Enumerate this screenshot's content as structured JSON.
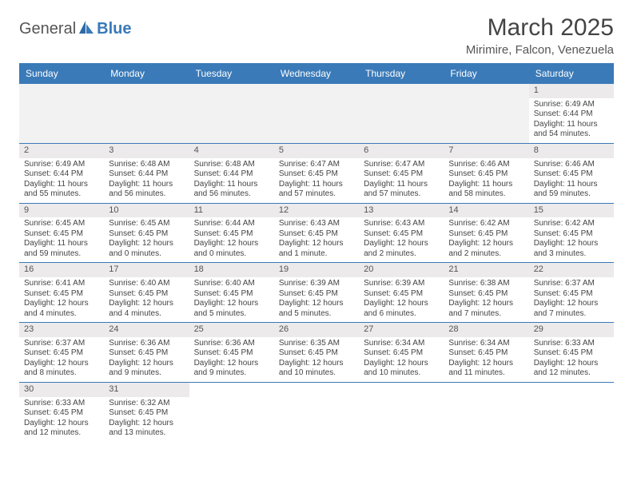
{
  "brand": {
    "name_a": "General",
    "name_b": "Blue"
  },
  "title": "March 2025",
  "location": "Mirimire, Falcon, Venezuela",
  "colors": {
    "header_bg": "#3a7ab8",
    "band_bg": "#eceaea",
    "empty_bg": "#f2f2f2",
    "rule": "#3a7ab8",
    "text": "#444444"
  },
  "day_headers": [
    "Sunday",
    "Monday",
    "Tuesday",
    "Wednesday",
    "Thursday",
    "Friday",
    "Saturday"
  ],
  "weeks": [
    [
      {
        "empty": true
      },
      {
        "empty": true
      },
      {
        "empty": true
      },
      {
        "empty": true
      },
      {
        "empty": true
      },
      {
        "empty": true
      },
      {
        "n": "1",
        "sr": "Sunrise: 6:49 AM",
        "ss": "Sunset: 6:44 PM",
        "d1": "Daylight: 11 hours",
        "d2": "and 54 minutes."
      }
    ],
    [
      {
        "n": "2",
        "sr": "Sunrise: 6:49 AM",
        "ss": "Sunset: 6:44 PM",
        "d1": "Daylight: 11 hours",
        "d2": "and 55 minutes."
      },
      {
        "n": "3",
        "sr": "Sunrise: 6:48 AM",
        "ss": "Sunset: 6:44 PM",
        "d1": "Daylight: 11 hours",
        "d2": "and 56 minutes."
      },
      {
        "n": "4",
        "sr": "Sunrise: 6:48 AM",
        "ss": "Sunset: 6:44 PM",
        "d1": "Daylight: 11 hours",
        "d2": "and 56 minutes."
      },
      {
        "n": "5",
        "sr": "Sunrise: 6:47 AM",
        "ss": "Sunset: 6:45 PM",
        "d1": "Daylight: 11 hours",
        "d2": "and 57 minutes."
      },
      {
        "n": "6",
        "sr": "Sunrise: 6:47 AM",
        "ss": "Sunset: 6:45 PM",
        "d1": "Daylight: 11 hours",
        "d2": "and 57 minutes."
      },
      {
        "n": "7",
        "sr": "Sunrise: 6:46 AM",
        "ss": "Sunset: 6:45 PM",
        "d1": "Daylight: 11 hours",
        "d2": "and 58 minutes."
      },
      {
        "n": "8",
        "sr": "Sunrise: 6:46 AM",
        "ss": "Sunset: 6:45 PM",
        "d1": "Daylight: 11 hours",
        "d2": "and 59 minutes."
      }
    ],
    [
      {
        "n": "9",
        "sr": "Sunrise: 6:45 AM",
        "ss": "Sunset: 6:45 PM",
        "d1": "Daylight: 11 hours",
        "d2": "and 59 minutes."
      },
      {
        "n": "10",
        "sr": "Sunrise: 6:45 AM",
        "ss": "Sunset: 6:45 PM",
        "d1": "Daylight: 12 hours",
        "d2": "and 0 minutes."
      },
      {
        "n": "11",
        "sr": "Sunrise: 6:44 AM",
        "ss": "Sunset: 6:45 PM",
        "d1": "Daylight: 12 hours",
        "d2": "and 0 minutes."
      },
      {
        "n": "12",
        "sr": "Sunrise: 6:43 AM",
        "ss": "Sunset: 6:45 PM",
        "d1": "Daylight: 12 hours",
        "d2": "and 1 minute."
      },
      {
        "n": "13",
        "sr": "Sunrise: 6:43 AM",
        "ss": "Sunset: 6:45 PM",
        "d1": "Daylight: 12 hours",
        "d2": "and 2 minutes."
      },
      {
        "n": "14",
        "sr": "Sunrise: 6:42 AM",
        "ss": "Sunset: 6:45 PM",
        "d1": "Daylight: 12 hours",
        "d2": "and 2 minutes."
      },
      {
        "n": "15",
        "sr": "Sunrise: 6:42 AM",
        "ss": "Sunset: 6:45 PM",
        "d1": "Daylight: 12 hours",
        "d2": "and 3 minutes."
      }
    ],
    [
      {
        "n": "16",
        "sr": "Sunrise: 6:41 AM",
        "ss": "Sunset: 6:45 PM",
        "d1": "Daylight: 12 hours",
        "d2": "and 4 minutes."
      },
      {
        "n": "17",
        "sr": "Sunrise: 6:40 AM",
        "ss": "Sunset: 6:45 PM",
        "d1": "Daylight: 12 hours",
        "d2": "and 4 minutes."
      },
      {
        "n": "18",
        "sr": "Sunrise: 6:40 AM",
        "ss": "Sunset: 6:45 PM",
        "d1": "Daylight: 12 hours",
        "d2": "and 5 minutes."
      },
      {
        "n": "19",
        "sr": "Sunrise: 6:39 AM",
        "ss": "Sunset: 6:45 PM",
        "d1": "Daylight: 12 hours",
        "d2": "and 5 minutes."
      },
      {
        "n": "20",
        "sr": "Sunrise: 6:39 AM",
        "ss": "Sunset: 6:45 PM",
        "d1": "Daylight: 12 hours",
        "d2": "and 6 minutes."
      },
      {
        "n": "21",
        "sr": "Sunrise: 6:38 AM",
        "ss": "Sunset: 6:45 PM",
        "d1": "Daylight: 12 hours",
        "d2": "and 7 minutes."
      },
      {
        "n": "22",
        "sr": "Sunrise: 6:37 AM",
        "ss": "Sunset: 6:45 PM",
        "d1": "Daylight: 12 hours",
        "d2": "and 7 minutes."
      }
    ],
    [
      {
        "n": "23",
        "sr": "Sunrise: 6:37 AM",
        "ss": "Sunset: 6:45 PM",
        "d1": "Daylight: 12 hours",
        "d2": "and 8 minutes."
      },
      {
        "n": "24",
        "sr": "Sunrise: 6:36 AM",
        "ss": "Sunset: 6:45 PM",
        "d1": "Daylight: 12 hours",
        "d2": "and 9 minutes."
      },
      {
        "n": "25",
        "sr": "Sunrise: 6:36 AM",
        "ss": "Sunset: 6:45 PM",
        "d1": "Daylight: 12 hours",
        "d2": "and 9 minutes."
      },
      {
        "n": "26",
        "sr": "Sunrise: 6:35 AM",
        "ss": "Sunset: 6:45 PM",
        "d1": "Daylight: 12 hours",
        "d2": "and 10 minutes."
      },
      {
        "n": "27",
        "sr": "Sunrise: 6:34 AM",
        "ss": "Sunset: 6:45 PM",
        "d1": "Daylight: 12 hours",
        "d2": "and 10 minutes."
      },
      {
        "n": "28",
        "sr": "Sunrise: 6:34 AM",
        "ss": "Sunset: 6:45 PM",
        "d1": "Daylight: 12 hours",
        "d2": "and 11 minutes."
      },
      {
        "n": "29",
        "sr": "Sunrise: 6:33 AM",
        "ss": "Sunset: 6:45 PM",
        "d1": "Daylight: 12 hours",
        "d2": "and 12 minutes."
      }
    ],
    [
      {
        "n": "30",
        "sr": "Sunrise: 6:33 AM",
        "ss": "Sunset: 6:45 PM",
        "d1": "Daylight: 12 hours",
        "d2": "and 12 minutes."
      },
      {
        "n": "31",
        "sr": "Sunrise: 6:32 AM",
        "ss": "Sunset: 6:45 PM",
        "d1": "Daylight: 12 hours",
        "d2": "and 13 minutes."
      },
      {
        "empty": true,
        "trailing": true
      },
      {
        "empty": true,
        "trailing": true
      },
      {
        "empty": true,
        "trailing": true
      },
      {
        "empty": true,
        "trailing": true
      },
      {
        "empty": true,
        "trailing": true
      }
    ]
  ]
}
